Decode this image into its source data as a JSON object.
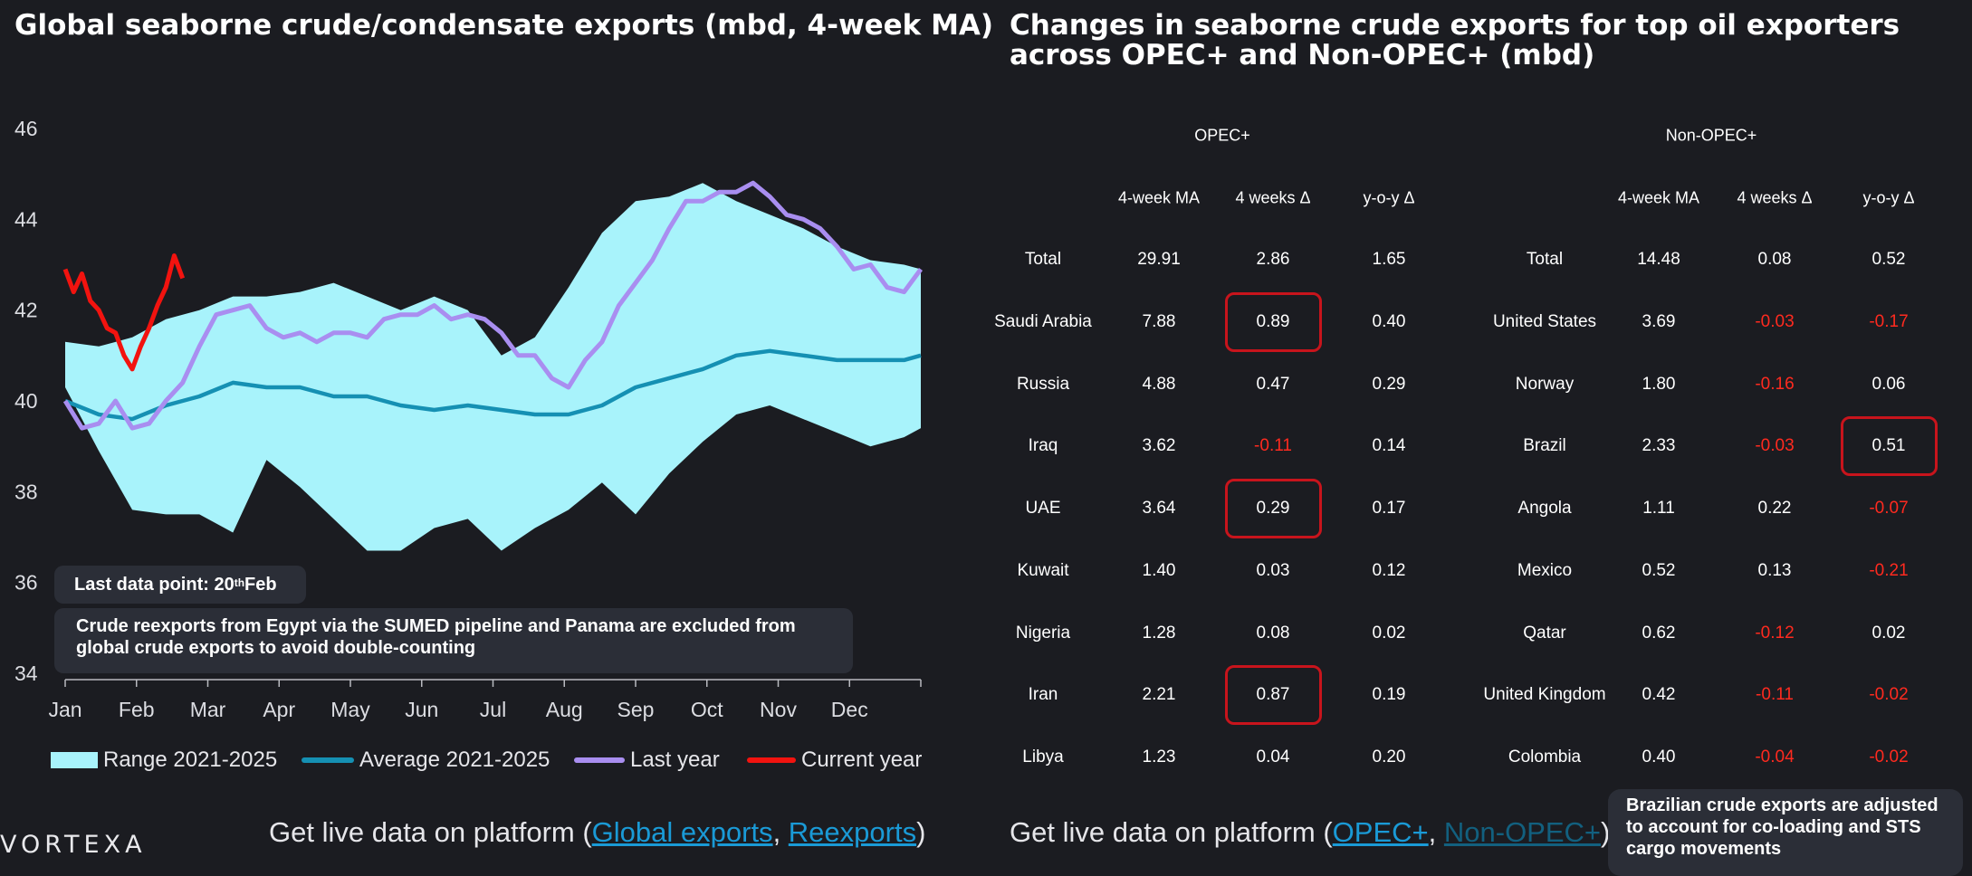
{
  "left_title": "Global seaborne crude/condensate exports (mbd, 4-week MA)",
  "right_title": "Changes in seaborne crude exports for top oil exporters across OPEC+ and Non-OPEC+ (mbd)",
  "notes": {
    "last_data_prefix": "Last data point: 20",
    "last_data_sup": "th",
    "last_data_suffix": " Feb",
    "reexports": "Crude reexports from Egypt via the SUMED pipeline and Panama are excluded from global crude exports to avoid double-counting",
    "brazil": "Brazilian crude exports are adjusted to account for co-loading and STS cargo movements"
  },
  "footer_left": {
    "prefix": "Get live data on platform (",
    "link1": "Global exports",
    "sep": ", ",
    "link2": "Reexports",
    "suffix": ")"
  },
  "footer_right": {
    "prefix": "Get live data on platform (",
    "link1": "OPEC+",
    "sep": ", ",
    "link2": "Non-OPEC+",
    "suffix": ")"
  },
  "logo": "VORTEXA",
  "colors": {
    "range": "#a8f3fb",
    "average": "#1590b3",
    "last_year": "#a98ef0",
    "current_year": "#f2130f",
    "negative": "#ff2a1f",
    "highlight": "#c8141c"
  },
  "chart_data": {
    "type": "line",
    "title": "Global seaborne crude/condensate exports (mbd, 4-week MA)",
    "ylim": [
      34,
      46
    ],
    "yticks": [
      34,
      36,
      38,
      40,
      42,
      44,
      46
    ],
    "xticks": [
      "Jan",
      "Feb",
      "Mar",
      "Apr",
      "May",
      "Jun",
      "Jul",
      "Aug",
      "Sep",
      "Oct",
      "Nov",
      "Dec"
    ],
    "week": [
      1,
      3,
      5,
      7,
      9,
      11,
      13,
      15,
      17,
      19,
      21,
      23,
      25,
      27,
      29,
      31,
      33,
      35,
      37,
      39,
      41,
      43,
      45,
      47,
      49,
      51,
      52
    ],
    "range_max": [
      41.3,
      41.2,
      41.4,
      41.8,
      42.0,
      42.3,
      42.3,
      42.4,
      42.6,
      42.3,
      42.0,
      42.3,
      42.0,
      41.0,
      41.4,
      42.5,
      43.7,
      44.4,
      44.5,
      44.8,
      44.4,
      44.1,
      43.8,
      43.4,
      43.1,
      43.0,
      42.9
    ],
    "range_min": [
      40.3,
      38.9,
      37.6,
      37.5,
      37.5,
      37.1,
      38.7,
      38.1,
      37.4,
      36.7,
      36.7,
      37.2,
      37.4,
      36.7,
      37.2,
      37.6,
      38.2,
      37.5,
      38.4,
      39.1,
      39.7,
      39.9,
      39.6,
      39.3,
      39.0,
      39.2,
      39.4
    ],
    "series": [
      {
        "name": "Range 2021-2025",
        "kind": "band"
      },
      {
        "name": "Average 2021-2025",
        "week": [
          1,
          3,
          5,
          7,
          9,
          11,
          13,
          15,
          17,
          19,
          21,
          23,
          25,
          27,
          29,
          31,
          33,
          35,
          37,
          39,
          41,
          43,
          45,
          47,
          49,
          51,
          52
        ],
        "values": [
          40.0,
          39.7,
          39.6,
          39.9,
          40.1,
          40.4,
          40.3,
          40.3,
          40.1,
          40.1,
          39.9,
          39.8,
          39.9,
          39.8,
          39.7,
          39.7,
          39.9,
          40.3,
          40.5,
          40.7,
          41.0,
          41.1,
          41.0,
          40.9,
          40.9,
          40.9,
          41.0
        ]
      },
      {
        "name": "Last year",
        "week": [
          1,
          2,
          3,
          4,
          5,
          6,
          7,
          8,
          9,
          10,
          11,
          12,
          13,
          14,
          15,
          16,
          17,
          18,
          19,
          20,
          21,
          22,
          23,
          24,
          25,
          26,
          27,
          28,
          29,
          30,
          31,
          32,
          33,
          34,
          35,
          36,
          37,
          38,
          39,
          40,
          41,
          42,
          43,
          44,
          45,
          46,
          47,
          48,
          49,
          50,
          51,
          52
        ],
        "values": [
          40.0,
          39.4,
          39.5,
          40.0,
          39.4,
          39.5,
          40.0,
          40.4,
          41.2,
          41.9,
          42.0,
          42.1,
          41.6,
          41.4,
          41.5,
          41.3,
          41.5,
          41.5,
          41.4,
          41.8,
          41.9,
          41.9,
          42.1,
          41.8,
          41.9,
          41.8,
          41.5,
          41.0,
          41.0,
          40.5,
          40.3,
          40.9,
          41.3,
          42.1,
          42.6,
          43.1,
          43.8,
          44.4,
          44.4,
          44.6,
          44.6,
          44.8,
          44.5,
          44.1,
          44.0,
          43.8,
          43.4,
          42.9,
          43.0,
          42.5,
          42.4,
          42.9
        ]
      },
      {
        "name": "Current year",
        "week": [
          1,
          1.5,
          2,
          2.5,
          3,
          3.5,
          4,
          4.5,
          5,
          5.5,
          6,
          6.5,
          7,
          7.5,
          8
        ],
        "values": [
          42.9,
          42.4,
          42.8,
          42.2,
          42.0,
          41.6,
          41.5,
          41.0,
          40.7,
          41.2,
          41.6,
          42.1,
          42.5,
          43.2,
          42.7
        ]
      }
    ]
  },
  "table": {
    "groups": [
      {
        "name": "OPEC+",
        "headers": [
          "4-week MA",
          "4 weeks Δ",
          "y-o-y Δ"
        ],
        "rows": [
          {
            "country": "Total",
            "ma": "29.91",
            "d4": "2.86",
            "yoy": "1.65"
          },
          {
            "country": "Saudi Arabia",
            "ma": "7.88",
            "d4": "0.89",
            "yoy": "0.40"
          },
          {
            "country": "Russia",
            "ma": "4.88",
            "d4": "0.47",
            "yoy": "0.29"
          },
          {
            "country": "Iraq",
            "ma": "3.62",
            "d4": "-0.11",
            "yoy": "0.14"
          },
          {
            "country": "UAE",
            "ma": "3.64",
            "d4": "0.29",
            "yoy": "0.17"
          },
          {
            "country": "Kuwait",
            "ma": "1.40",
            "d4": "0.03",
            "yoy": "0.12"
          },
          {
            "country": "Nigeria",
            "ma": "1.28",
            "d4": "0.08",
            "yoy": "0.02"
          },
          {
            "country": "Iran",
            "ma": "2.21",
            "d4": "0.87",
            "yoy": "0.19"
          },
          {
            "country": "Libya",
            "ma": "1.23",
            "d4": "0.04",
            "yoy": "0.20"
          }
        ],
        "highlight_d4": [
          1,
          4,
          7
        ],
        "highlight_yoy": []
      },
      {
        "name": "Non-OPEC+",
        "headers": [
          "4-week MA",
          "4 weeks Δ",
          "y-o-y Δ"
        ],
        "rows": [
          {
            "country": "Total",
            "ma": "14.48",
            "d4": "0.08",
            "yoy": "0.52"
          },
          {
            "country": "United States",
            "ma": "3.69",
            "d4": "-0.03",
            "yoy": "-0.17"
          },
          {
            "country": "Norway",
            "ma": "1.80",
            "d4": "-0.16",
            "yoy": "0.06"
          },
          {
            "country": "Brazil",
            "ma": "2.33",
            "d4": "-0.03",
            "yoy": "0.51"
          },
          {
            "country": "Angola",
            "ma": "1.11",
            "d4": "0.22",
            "yoy": "-0.07"
          },
          {
            "country": "Mexico",
            "ma": "0.52",
            "d4": "0.13",
            "yoy": "-0.21"
          },
          {
            "country": "Qatar",
            "ma": "0.62",
            "d4": "-0.12",
            "yoy": "0.02"
          },
          {
            "country": "United Kingdom",
            "ma": "0.42",
            "d4": "-0.11",
            "yoy": "-0.02"
          },
          {
            "country": "Colombia",
            "ma": "0.40",
            "d4": "-0.04",
            "yoy": "-0.02"
          }
        ],
        "highlight_d4": [],
        "highlight_yoy": [
          3
        ]
      }
    ]
  }
}
